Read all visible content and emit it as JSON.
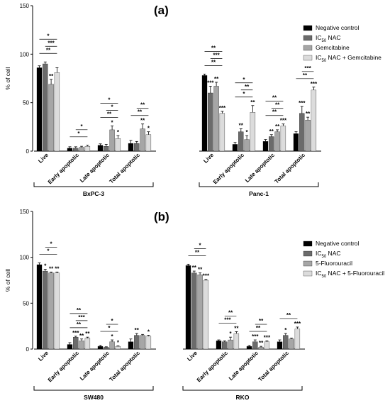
{
  "chart_data": [
    {
      "type": "bar",
      "panel": "(a)",
      "ylabel": "% of cell",
      "ylim": [
        0,
        150
      ],
      "yticks": [
        0,
        50,
        100,
        150
      ],
      "colors": [
        "#000000",
        "#6b6b6b",
        "#a6a6a6",
        "#dcdcdc"
      ],
      "legend": [
        "Negative control",
        "IC50 NAC",
        "Gemcitabine",
        "IC50 NAC + Gemcitabine"
      ],
      "legend_position": "right",
      "groups": [
        {
          "name": "BxPC-3",
          "categories": [
            "Live",
            "Early apoptotic",
            "Late apoptotic",
            "Total apoptotic"
          ],
          "values": [
            [
              86,
              90,
              69,
              81
            ],
            [
              3,
              3,
              4,
              5
            ],
            [
              6,
              5,
              22,
              13
            ],
            [
              8,
              8,
              23,
              17
            ]
          ],
          "errors": [
            [
              2,
              2,
              5,
              5
            ],
            [
              1.5,
              1.5,
              1,
              1
            ],
            [
              1.5,
              2,
              4,
              3
            ],
            [
              3,
              2,
              5,
              3
            ]
          ],
          "stars": [
            [
              "",
              "",
              "**",
              ""
            ],
            [
              "",
              "",
              "",
              ""
            ],
            [
              "",
              "",
              "*",
              "*"
            ],
            [
              "",
              "",
              "**",
              "*"
            ]
          ]
        },
        {
          "name": "Panc-1",
          "categories": [
            "Live",
            "Early apoptotic",
            "Late apoptotic",
            "Total apoptotic"
          ],
          "values": [
            [
              78,
              60,
              67,
              39
            ],
            [
              7,
              20,
              12,
              40
            ],
            [
              10,
              15,
              20,
              26
            ],
            [
              18,
              39,
              32,
              63
            ]
          ],
          "errors": [
            [
              1.5,
              7,
              4,
              2
            ],
            [
              2,
              3,
              4,
              7
            ],
            [
              2,
              2,
              2,
              2
            ],
            [
              2,
              7,
              3,
              3
            ]
          ],
          "stars": [
            [
              "",
              "***",
              "**",
              "***"
            ],
            [
              "",
              "**",
              "*",
              "**"
            ],
            [
              "",
              "**",
              "**",
              "***"
            ],
            [
              "",
              "***",
              "**",
              "***"
            ]
          ]
        }
      ],
      "comparisons": [
        {
          "label": "**",
          "group": 0,
          "cat": 0
        },
        {
          "label": "***",
          "group": 0,
          "cat": 0
        },
        {
          "label": "*",
          "group": 0,
          "cat": 0
        },
        {
          "label": "*",
          "group": 0,
          "cat": 1
        },
        {
          "label": "*",
          "group": 0,
          "cat": 1
        },
        {
          "label": "**",
          "group": 0,
          "cat": 2
        },
        {
          "label": "*",
          "group": 0,
          "cat": 2
        },
        {
          "label": "*",
          "group": 0,
          "cat": 2
        },
        {
          "label": "**",
          "group": 0,
          "cat": 3
        },
        {
          "label": "**",
          "group": 0,
          "cat": 3
        },
        {
          "label": "**",
          "group": 1,
          "cat": 0
        },
        {
          "label": "***",
          "group": 1,
          "cat": 0
        },
        {
          "label": "**",
          "group": 1,
          "cat": 0
        },
        {
          "label": "*",
          "group": 1,
          "cat": 1
        },
        {
          "label": "**",
          "group": 1,
          "cat": 1
        },
        {
          "label": "*",
          "group": 1,
          "cat": 1
        },
        {
          "label": "**",
          "group": 1,
          "cat": 2
        },
        {
          "label": "**",
          "group": 1,
          "cat": 2
        },
        {
          "label": "**",
          "group": 1,
          "cat": 2
        },
        {
          "label": "**",
          "group": 1,
          "cat": 3
        },
        {
          "label": "***",
          "group": 1,
          "cat": 3
        }
      ]
    },
    {
      "type": "bar",
      "panel": "(b)",
      "ylabel": "% of cell",
      "ylim": [
        0,
        150
      ],
      "yticks": [
        0,
        50,
        100,
        150
      ],
      "colors": [
        "#000000",
        "#6b6b6b",
        "#a6a6a6",
        "#dcdcdc"
      ],
      "legend": [
        "Negative control",
        "IC50 NAC",
        "5-Fluorouracil",
        "IC50 NAC + 5-Fluorouracil"
      ],
      "legend_position": "right",
      "groups": [
        {
          "name": "SW480",
          "categories": [
            "Live",
            "Early apoptotic",
            "Late apoptotic",
            "Total apoptotic"
          ],
          "values": [
            [
              92,
              85,
              83,
              83
            ],
            [
              5,
              13,
              9,
              12
            ],
            [
              3,
              2,
              8,
              3
            ],
            [
              8,
              15,
              15,
              14
            ]
          ],
          "errors": [
            [
              2,
              2,
              1,
              1
            ],
            [
              2,
              1,
              2,
              1
            ],
            [
              1,
              0.5,
              2,
              0.5
            ],
            [
              3,
              2,
              1,
              1
            ]
          ],
          "stars": [
            [
              "",
              "*",
              "**",
              "**"
            ],
            [
              "",
              "***",
              "**",
              "**"
            ],
            [
              "",
              "",
              "*",
              "*"
            ],
            [
              "",
              "**",
              "",
              "*"
            ]
          ]
        },
        {
          "name": "RKO",
          "categories": [
            "Live",
            "Early apoptotic",
            "Late apoptotic",
            "Total apoptotic"
          ],
          "values": [
            [
              91,
              83,
              81,
              75
            ],
            [
              9,
              8,
              10,
              17
            ],
            [
              3,
              8,
              2,
              8
            ],
            [
              8,
              15,
              11,
              22
            ]
          ],
          "errors": [
            [
              1.5,
              2,
              2,
              1
            ],
            [
              1,
              1,
              3,
              2
            ],
            [
              1,
              2,
              1,
              1
            ],
            [
              2,
              2,
              1,
              2
            ]
          ],
          "stars": [
            [
              "",
              "**",
              "**",
              "***"
            ],
            [
              "",
              "",
              "*",
              "**"
            ],
            [
              "",
              "***",
              "**",
              "***"
            ],
            [
              "",
              "*",
              "",
              "***"
            ]
          ]
        }
      ],
      "comparisons": [
        {
          "label": "*",
          "group": 0,
          "cat": 0
        },
        {
          "label": "*",
          "group": 0,
          "cat": 0
        },
        {
          "label": "**",
          "group": 0,
          "cat": 1
        },
        {
          "label": "***",
          "group": 0,
          "cat": 1
        },
        {
          "label": "**",
          "group": 0,
          "cat": 1
        },
        {
          "label": "*",
          "group": 0,
          "cat": 2
        },
        {
          "label": "*",
          "group": 0,
          "cat": 2
        },
        {
          "label": "**",
          "group": 1,
          "cat": 0
        },
        {
          "label": "*",
          "group": 1,
          "cat": 0
        },
        {
          "label": "***",
          "group": 1,
          "cat": 1
        },
        {
          "label": "**",
          "group": 1,
          "cat": 1
        },
        {
          "label": "**",
          "group": 1,
          "cat": 2
        },
        {
          "label": "**",
          "group": 1,
          "cat": 2
        },
        {
          "label": "**",
          "group": 1,
          "cat": 3
        }
      ]
    }
  ]
}
